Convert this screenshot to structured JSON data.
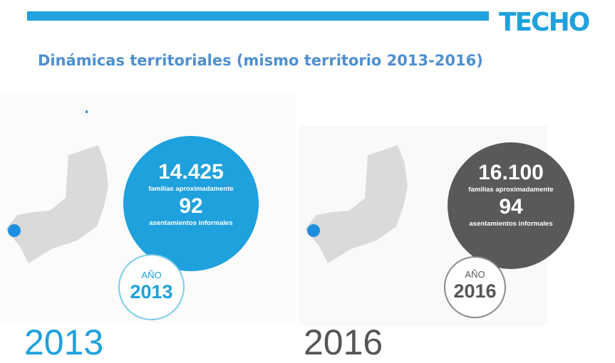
{
  "header": {
    "logo_text": "TECHO",
    "accent_color": "#1ea1dc"
  },
  "title": "Dinámicas territoriales (mismo territorio 2013-2016)",
  "panels": [
    {
      "families": "14.425",
      "families_label": "familias aproximadamente",
      "settlements": "92",
      "settlements_label": "asentamientos informales",
      "badge_label": "AÑO",
      "badge_year": "2013",
      "year_caption": "2013",
      "color": "#1ea1dc"
    },
    {
      "families": "16.100",
      "families_label": "familias aproximadamente",
      "settlements": "94",
      "settlements_label": "asentamientos informales",
      "badge_label": "AÑO",
      "badge_year": "2016",
      "year_caption": "2016",
      "color": "#595959"
    }
  ]
}
